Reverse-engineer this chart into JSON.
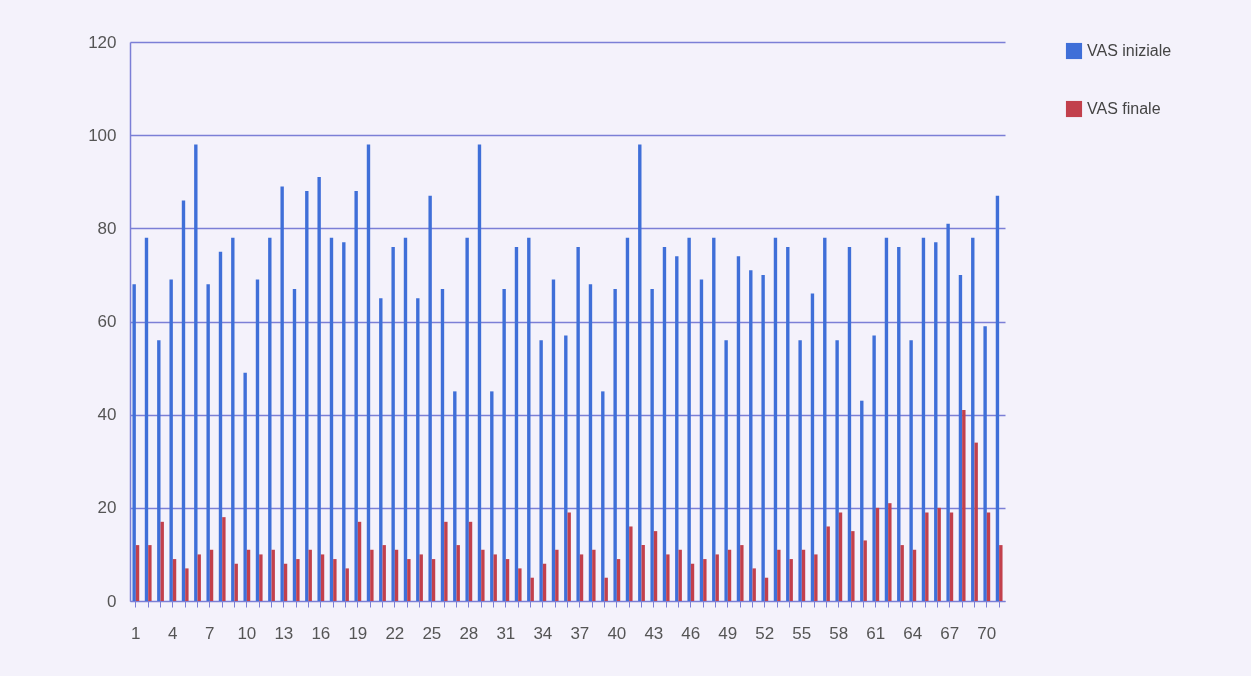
{
  "chart_data": {
    "type": "bar",
    "categories": [
      "1",
      null,
      null,
      "4",
      null,
      null,
      "7",
      null,
      null,
      "10",
      null,
      null,
      "13",
      null,
      null,
      "16",
      null,
      null,
      "19",
      null,
      null,
      "22",
      null,
      null,
      "25",
      null,
      null,
      "28",
      null,
      null,
      "31",
      null,
      null,
      "34",
      null,
      null,
      "37",
      null,
      null,
      "40",
      null,
      null,
      "43",
      null,
      null,
      "46",
      null,
      null,
      "49",
      null,
      null,
      "52",
      null,
      null,
      "55",
      null,
      null,
      "58",
      null,
      null,
      "61",
      null,
      null,
      "64",
      null,
      null,
      "67",
      null,
      null,
      "70",
      null
    ],
    "series": [
      {
        "name": "VAS iniziale",
        "color": "#3f6fd8",
        "values": [
          68,
          78,
          56,
          69,
          86,
          98,
          68,
          75,
          78,
          49,
          69,
          78,
          89,
          67,
          88,
          91,
          78,
          77,
          88,
          98,
          65,
          76,
          78,
          65,
          87,
          67,
          45,
          78,
          98,
          45,
          67,
          76,
          78,
          56,
          69,
          57,
          76,
          68,
          45,
          67,
          78,
          98,
          67,
          76,
          74,
          78,
          69,
          78,
          56,
          74,
          71,
          70,
          78,
          76,
          56,
          66,
          78,
          56,
          76,
          43,
          57,
          78,
          76,
          56,
          78,
          77,
          81,
          70,
          78,
          59,
          87
        ]
      },
      {
        "name": "VAS finale",
        "color": "#c2404c",
        "values": [
          12,
          12,
          17,
          9,
          7,
          10,
          11,
          18,
          8,
          11,
          10,
          11,
          8,
          9,
          11,
          10,
          9,
          7,
          17,
          11,
          12,
          11,
          9,
          10,
          9,
          17,
          12,
          17,
          11,
          10,
          9,
          7,
          5,
          8,
          11,
          19,
          10,
          11,
          5,
          9,
          16,
          12,
          15,
          10,
          11,
          8,
          9,
          10,
          11,
          12,
          7,
          5,
          11,
          9,
          11,
          10,
          16,
          19,
          15,
          13,
          20,
          21,
          12,
          11,
          19,
          20,
          19,
          41,
          34,
          19,
          12
        ]
      }
    ],
    "ylim": [
      0,
      120
    ],
    "yticks": [
      0,
      20,
      40,
      60,
      80,
      100,
      120
    ],
    "grid": "y",
    "legend": "right"
  }
}
